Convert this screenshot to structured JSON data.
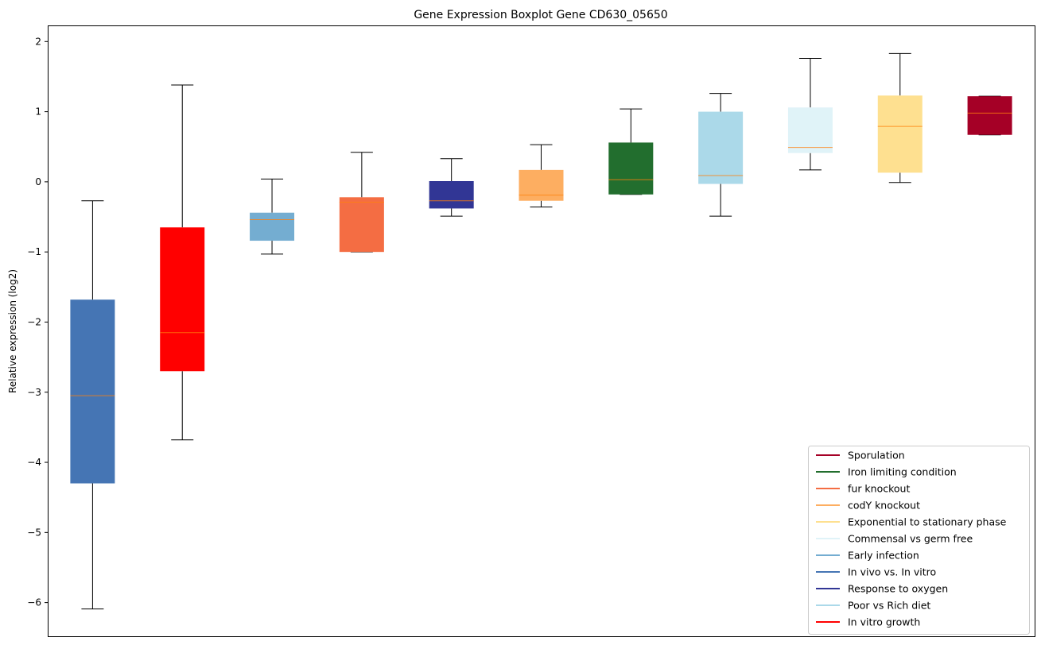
{
  "chart_data": {
    "type": "boxplot",
    "title": "Gene Expression Boxplot Gene CD630_05650",
    "xlabel": "",
    "ylabel": "Relative expression (log2)",
    "ylim": [
      -6.48,
      2.23
    ],
    "yticks": [
      2,
      1,
      0,
      -1,
      -2,
      -3,
      -4,
      -5,
      -6
    ],
    "ytick_labels": [
      "2",
      "1",
      "0",
      "−1",
      "−2",
      "−3",
      "−4",
      "−5",
      "−6"
    ],
    "grid": false,
    "legend_position": "bottom-right",
    "median_color": "#ff7f0e",
    "boxes": [
      {
        "name": "In vivo vs. In vitro",
        "color": "#4575b4",
        "whisker_low": -6.09,
        "q1": -4.3,
        "median": -3.05,
        "q3": -1.68,
        "whisker_high": -0.27
      },
      {
        "name": "In vitro growth",
        "color": "#ff0000",
        "whisker_low": -3.68,
        "q1": -2.7,
        "median": -2.15,
        "q3": -0.65,
        "whisker_high": 1.38
      },
      {
        "name": "Early infection",
        "color": "#74add1",
        "whisker_low": -1.03,
        "q1": -0.84,
        "median": -0.54,
        "q3": -0.44,
        "whisker_high": 0.04
      },
      {
        "name": "fur knockout",
        "color": "#f46d43",
        "whisker_low": -1.0,
        "q1": -1.0,
        "median": -0.29,
        "q3": -0.22,
        "whisker_high": 0.42
      },
      {
        "name": "Response to oxygen",
        "color": "#313695",
        "whisker_low": -0.49,
        "q1": -0.38,
        "median": -0.27,
        "q3": 0.01,
        "whisker_high": 0.33
      },
      {
        "name": "codY knockout",
        "color": "#fdae61",
        "whisker_low": -0.36,
        "q1": -0.27,
        "median": -0.19,
        "q3": 0.17,
        "whisker_high": 0.53
      },
      {
        "name": "Iron limiting condition",
        "color": "#226e2e",
        "whisker_low": -0.18,
        "q1": -0.18,
        "median": 0.03,
        "q3": 0.56,
        "whisker_high": 1.04
      },
      {
        "name": "Poor vs Rich diet",
        "color": "#abd9e9",
        "whisker_low": -0.49,
        "q1": -0.03,
        "median": 0.09,
        "q3": 1.0,
        "whisker_high": 1.26
      },
      {
        "name": "Commensal vs germ free",
        "color": "#e0f3f8",
        "whisker_low": 0.17,
        "q1": 0.41,
        "median": 0.49,
        "q3": 1.06,
        "whisker_high": 1.76
      },
      {
        "name": "Exponential to stationary phase",
        "color": "#fee090",
        "whisker_low": -0.01,
        "q1": 0.13,
        "median": 0.79,
        "q3": 1.23,
        "whisker_high": 1.83
      },
      {
        "name": "Sporulation",
        "color": "#a50026",
        "whisker_low": 0.67,
        "q1": 0.67,
        "median": 0.98,
        "q3": 1.22,
        "whisker_high": 1.22
      }
    ],
    "legend": [
      {
        "label": "Sporulation",
        "color": "#a50026"
      },
      {
        "label": "Iron limiting condition",
        "color": "#226e2e"
      },
      {
        "label": "fur knockout",
        "color": "#f46d43"
      },
      {
        "label": "codY knockout",
        "color": "#fdae61"
      },
      {
        "label": "Exponential to stationary phase",
        "color": "#fee090"
      },
      {
        "label": "Commensal vs germ free",
        "color": "#e0f3f8"
      },
      {
        "label": "Early infection",
        "color": "#74add1"
      },
      {
        "label": "In vivo vs. In vitro",
        "color": "#4575b4"
      },
      {
        "label": "Response to oxygen",
        "color": "#313695"
      },
      {
        "label": "Poor vs Rich diet",
        "color": "#abd9e9"
      },
      {
        "label": "In vitro growth",
        "color": "#ff0000"
      }
    ]
  }
}
